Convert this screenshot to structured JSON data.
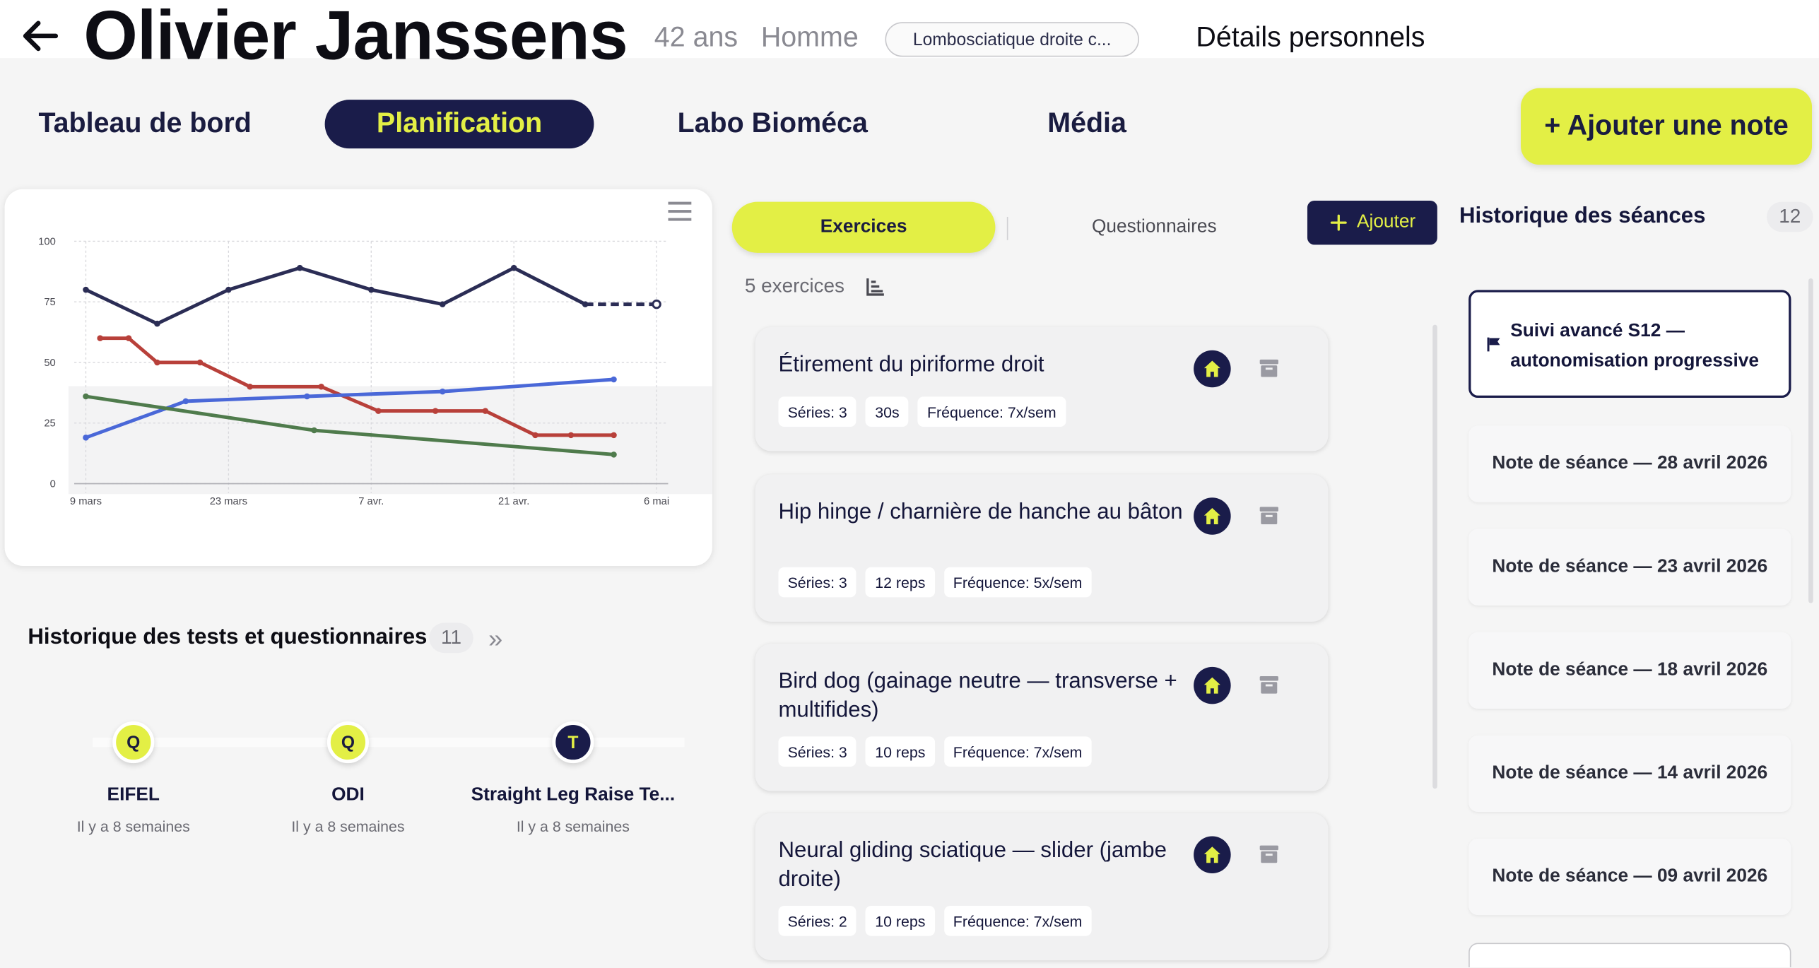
{
  "header": {
    "patient_name": "Olivier Janssens",
    "age": "42 ans",
    "gender": "Homme",
    "diagnosis": "Lombosciatique droite c...",
    "personal_details": "Détails personnels"
  },
  "tabs": [
    {
      "label": "Tableau de bord",
      "active": false
    },
    {
      "label": "Planification",
      "active": true
    },
    {
      "label": "Labo Bioméca",
      "active": false
    },
    {
      "label": "Média",
      "active": false
    }
  ],
  "add_note_label": "+ Ajouter une note",
  "chart_data": {
    "type": "line",
    "x": [
      "9 mars",
      "16 mars",
      "23 mars",
      "30 mars",
      "7 avr.",
      "14 avr.",
      "21 avr.",
      "28 avr.",
      "6 mai"
    ],
    "x_ticks": [
      "9 mars",
      "23 mars",
      "7 avr.",
      "21 avr.",
      "6 mai"
    ],
    "y_ticks": [
      "0",
      "25",
      "50",
      "75",
      "100"
    ],
    "ylim": [
      0,
      100
    ],
    "series": [
      {
        "color": "#2b2d55",
        "points": [
          [
            0,
            80
          ],
          [
            1,
            66
          ],
          [
            2,
            80
          ],
          [
            3,
            89
          ],
          [
            4,
            80
          ],
          [
            5,
            74
          ],
          [
            6,
            89
          ],
          [
            7,
            74
          ]
        ],
        "projection": [
          [
            7,
            74
          ],
          [
            8,
            74
          ]
        ]
      },
      {
        "color": "#b8403a",
        "points": [
          [
            0.2,
            60
          ],
          [
            0.6,
            60
          ],
          [
            1,
            50
          ],
          [
            1.6,
            50
          ],
          [
            2.3,
            40
          ],
          [
            3.3,
            40
          ],
          [
            4.1,
            30
          ],
          [
            4.9,
            30
          ],
          [
            5.6,
            30
          ],
          [
            6.3,
            20
          ],
          [
            6.8,
            20
          ],
          [
            7.4,
            20
          ]
        ]
      },
      {
        "color": "#4a68d8",
        "points": [
          [
            0,
            19
          ],
          [
            1.4,
            34
          ],
          [
            3.1,
            36
          ],
          [
            5,
            38
          ],
          [
            7.4,
            43
          ]
        ]
      },
      {
        "color": "#4f7b4c",
        "points": [
          [
            0,
            36
          ],
          [
            3.2,
            22
          ],
          [
            7.4,
            12
          ]
        ]
      }
    ],
    "grid": true
  },
  "tests": {
    "title": "Historique des tests et questionnaires",
    "count": "11",
    "items": [
      {
        "badge": "Q",
        "name": "EIFEL",
        "when": "Il y a 8 semaines",
        "color": "#e3ef45",
        "text_color": "#1a1c40"
      },
      {
        "badge": "Q",
        "name": "ODI",
        "when": "Il y a 8 semaines",
        "color": "#e3ef45",
        "text_color": "#1a1c40"
      },
      {
        "badge": "T",
        "name": "Straight Leg Raise Te...",
        "when": "Il y a 8 semaines",
        "color": "#1a1c4a",
        "text_color": "#e3ef45"
      }
    ]
  },
  "exercises": {
    "segment_active": "Exercices",
    "segment_inactive": "Questionnaires",
    "add_label": "Ajouter",
    "count_label": "5 exercices",
    "items": [
      {
        "title": "Étirement du piriforme droit",
        "chips": [
          "Séries: 3",
          "30s",
          "Fréquence: 7x/sem"
        ]
      },
      {
        "title": "Hip hinge / charnière de hanche au bâton",
        "chips": [
          "Séries: 3",
          "12 reps",
          "Fréquence: 5x/sem"
        ]
      },
      {
        "title": "Bird dog (gainage neutre — transverse + multifides)",
        "chips": [
          "Séries: 3",
          "10 reps",
          "Fréquence: 7x/sem"
        ]
      },
      {
        "title": "Neural gliding sciatique — slider (jambe droite)",
        "chips": [
          "Séries: 2",
          "10 reps",
          "Fréquence: 7x/sem"
        ]
      }
    ]
  },
  "sessions": {
    "title": "Historique des séances",
    "count": "12",
    "active": "Suivi avancé S12 — autonomisation progressive",
    "items": [
      "Note de séance — 28 avril 2026",
      "Note de séance — 23 avril 2026",
      "Note de séance — 18 avril 2026",
      "Note de séance — 14 avril 2026",
      "Note de séance — 09 avril 2026"
    ]
  },
  "colors": {
    "accent": "#e3ef45",
    "navy": "#1a1c4a"
  }
}
